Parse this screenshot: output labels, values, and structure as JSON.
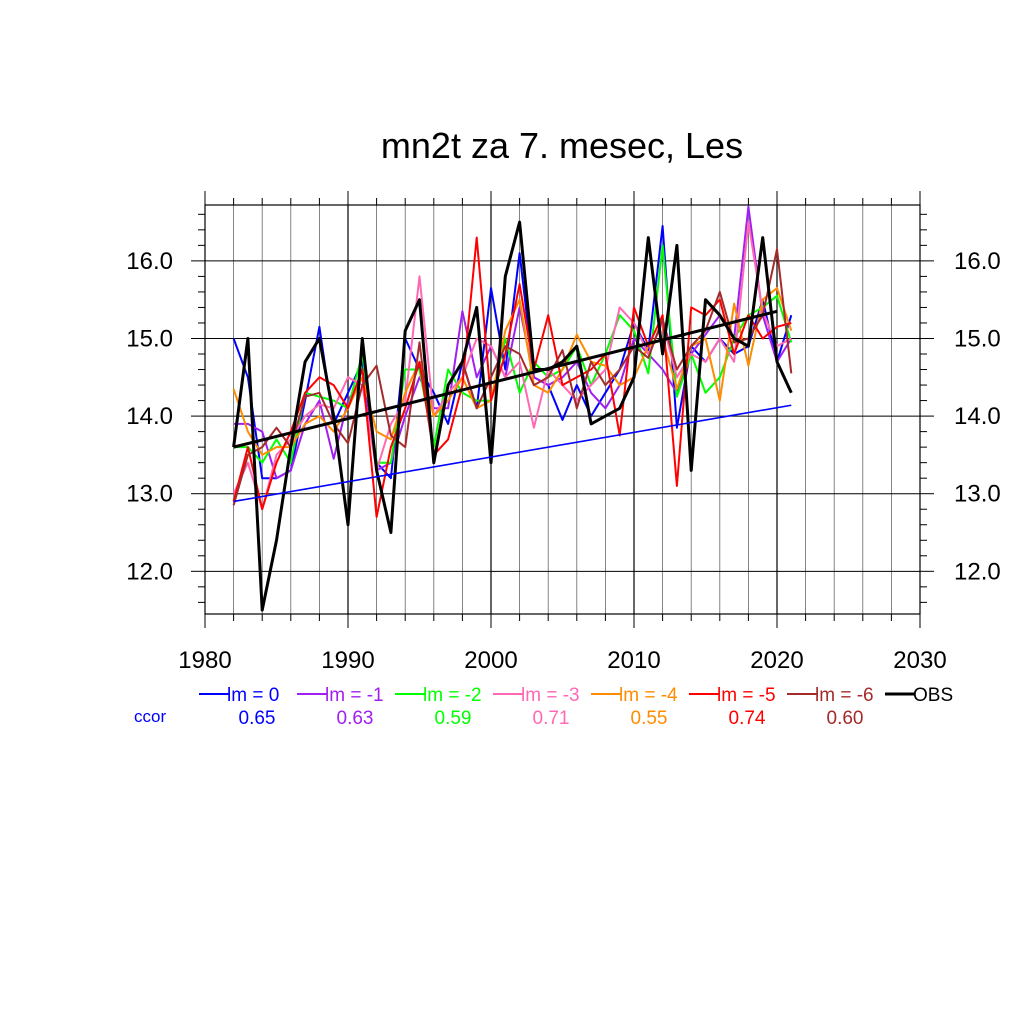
{
  "chart_data": {
    "type": "line",
    "title": "mn2t za 7. mesec, Les",
    "xlabel": "",
    "ylabel": "",
    "xlim": [
      1980,
      2030
    ],
    "ylim": [
      11.45,
      16.72
    ],
    "x_ticks": [
      "1980",
      "1990",
      "2000",
      "2010",
      "2020",
      "2030"
    ],
    "y_ticks": [
      "12.0",
      "13.0",
      "14.0",
      "15.0",
      "16.0"
    ],
    "grid": true,
    "legend_position": "bottom",
    "ccor_label": "ccor",
    "x": [
      1982,
      1983,
      1984,
      1985,
      1986,
      1987,
      1988,
      1989,
      1990,
      1991,
      1992,
      1993,
      1994,
      1995,
      1996,
      1997,
      1998,
      1999,
      2000,
      2001,
      2002,
      2003,
      2004,
      2005,
      2006,
      2007,
      2008,
      2009,
      2010,
      2011,
      2012,
      2013,
      2014,
      2015,
      2016,
      2017,
      2018,
      2019,
      2020,
      2021
    ],
    "series": [
      {
        "name": "lm = 0",
        "color": "#0000ff",
        "ccor": "0.65",
        "values": [
          15.0,
          14.5,
          13.2,
          13.2,
          13.3,
          14.2,
          15.15,
          13.9,
          14.3,
          14.7,
          13.4,
          13.2,
          15.0,
          14.6,
          14.3,
          13.9,
          14.7,
          14.1,
          15.65,
          14.6,
          16.1,
          14.5,
          14.4,
          13.95,
          14.4,
          14.0,
          14.3,
          14.6,
          15.2,
          14.85,
          16.45,
          13.85,
          14.9,
          14.7,
          15.0,
          14.8,
          14.9,
          15.5,
          14.7,
          15.3
        ]
      },
      {
        "name": "lm = -1",
        "color": "#a020f0",
        "ccor": "0.63",
        "values": [
          13.9,
          13.9,
          13.8,
          13.2,
          13.3,
          13.9,
          14.2,
          13.45,
          14.2,
          14.5,
          13.3,
          13.4,
          14.0,
          14.5,
          14.1,
          14.1,
          15.35,
          14.5,
          14.9,
          14.5,
          15.4,
          14.5,
          14.4,
          14.5,
          14.7,
          14.3,
          14.1,
          14.4,
          15.0,
          14.8,
          14.6,
          14.3,
          14.8,
          15.05,
          15.3,
          15.0,
          16.7,
          15.3,
          14.7,
          15.0
        ]
      },
      {
        "name": "lm = -2",
        "color": "#00ff00",
        "ccor": "0.59",
        "values": [
          13.6,
          13.6,
          13.4,
          13.7,
          13.4,
          14.3,
          14.25,
          14.2,
          14.1,
          14.8,
          13.4,
          13.4,
          14.6,
          14.6,
          13.6,
          14.6,
          14.3,
          14.2,
          14.2,
          15.0,
          14.3,
          14.7,
          14.5,
          14.6,
          14.9,
          14.4,
          14.8,
          15.3,
          15.1,
          14.55,
          16.2,
          14.25,
          14.8,
          14.3,
          14.5,
          15.0,
          15.3,
          15.4,
          15.55,
          14.95
        ]
      },
      {
        "name": "lm = -3",
        "color": "#ff69b4",
        "ccor": "0.71",
        "values": [
          13.0,
          13.4,
          12.8,
          13.5,
          13.7,
          14.0,
          14.15,
          14.1,
          14.5,
          14.4,
          13.3,
          13.9,
          14.2,
          15.8,
          14.0,
          14.3,
          14.5,
          15.0,
          14.9,
          14.5,
          14.7,
          13.85,
          14.6,
          14.4,
          14.2,
          14.4,
          14.6,
          15.4,
          15.2,
          14.8,
          15.2,
          14.5,
          14.8,
          14.7,
          15.0,
          14.7,
          16.5,
          15.35,
          14.9,
          15.0
        ]
      },
      {
        "name": "lm = -4",
        "color": "#ff8c00",
        "ccor": "0.55",
        "values": [
          14.35,
          13.8,
          13.5,
          13.6,
          13.6,
          13.9,
          14.0,
          13.8,
          14.1,
          14.5,
          13.8,
          13.7,
          14.3,
          14.7,
          14.0,
          14.2,
          14.5,
          14.1,
          14.2,
          15.1,
          15.5,
          14.4,
          14.3,
          14.6,
          15.05,
          14.7,
          14.65,
          14.4,
          14.5,
          14.9,
          15.0,
          14.35,
          14.9,
          15.0,
          14.2,
          15.45,
          14.65,
          15.5,
          15.65,
          15.1
        ]
      },
      {
        "name": "lm = -5",
        "color": "#ff0000",
        "ccor": "0.74",
        "values": [
          12.9,
          13.6,
          12.8,
          13.4,
          13.8,
          14.3,
          14.5,
          14.4,
          14.1,
          14.6,
          12.7,
          13.6,
          14.1,
          14.7,
          13.5,
          13.7,
          14.4,
          16.3,
          14.2,
          14.8,
          15.7,
          14.6,
          15.3,
          14.4,
          14.5,
          14.6,
          14.8,
          13.75,
          15.4,
          14.9,
          15.3,
          13.1,
          15.4,
          15.3,
          15.5,
          14.8,
          15.3,
          15.0,
          15.15,
          15.2
        ]
      },
      {
        "name": "lm = -6",
        "color": "#a52a2a",
        "ccor": "0.60",
        "values": [
          12.85,
          13.5,
          13.6,
          13.85,
          13.6,
          14.25,
          14.3,
          13.9,
          13.65,
          14.4,
          14.65,
          13.75,
          13.6,
          14.95,
          13.45,
          14.4,
          14.7,
          14.1,
          14.5,
          14.9,
          14.8,
          14.4,
          14.5,
          14.85,
          14.1,
          14.7,
          14.4,
          14.6,
          14.9,
          14.75,
          15.25,
          14.6,
          14.9,
          15.1,
          15.6,
          14.95,
          15.0,
          15.3,
          16.15,
          14.55
        ]
      },
      {
        "name": "OBS",
        "color": "#000000",
        "ccor": "",
        "values": [
          13.6,
          15.0,
          11.5,
          12.4,
          13.6,
          14.7,
          15.0,
          14.0,
          12.6,
          15.0,
          13.3,
          12.5,
          15.1,
          15.5,
          13.4,
          14.4,
          14.7,
          15.4,
          13.4,
          15.8,
          16.5,
          14.6,
          14.6,
          14.7,
          14.9,
          13.9,
          14.0,
          14.1,
          14.5,
          16.3,
          14.8,
          16.2,
          13.3,
          15.5,
          15.3,
          15.0,
          14.9,
          16.3,
          14.7,
          14.3
        ]
      }
    ],
    "trend_lines": [
      {
        "series": "lm = 0",
        "color": "#0000ff",
        "x": [
          1982,
          2021
        ],
        "y": [
          12.9,
          14.14
        ]
      },
      {
        "series": "OBS",
        "color": "#000000",
        "x": [
          1982,
          2020
        ],
        "y": [
          13.6,
          15.35
        ]
      }
    ]
  }
}
